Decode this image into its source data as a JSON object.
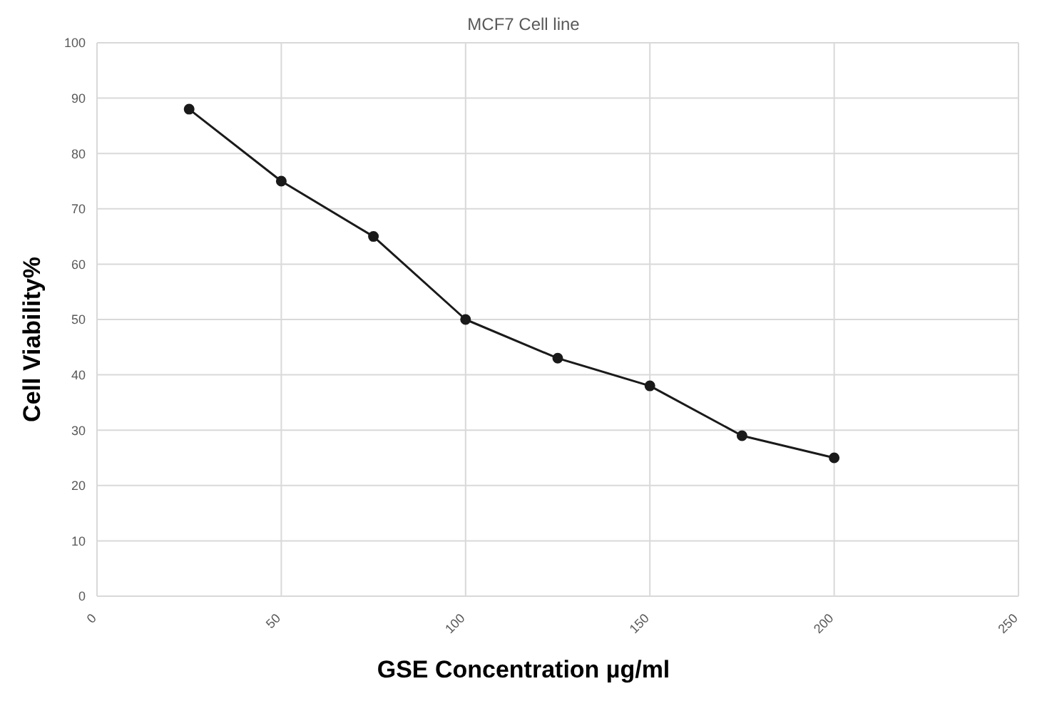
{
  "chart_data": {
    "type": "line",
    "title": "MCF7 Cell line",
    "xlabel": "GSE Concentration µg/ml",
    "ylabel": "Cell Viability%",
    "x": [
      25,
      50,
      75,
      100,
      125,
      150,
      175,
      200
    ],
    "series": [
      {
        "color": "#1a1a1a",
        "values": [
          88,
          75,
          65,
          50,
          43,
          38,
          29,
          25
        ]
      }
    ],
    "xlim": [
      0,
      250
    ],
    "xticks": [
      0,
      50,
      100,
      150,
      200,
      250
    ],
    "ylim": [
      0,
      100
    ],
    "yticks": [
      0,
      10,
      20,
      30,
      40,
      50,
      60,
      70,
      80,
      90,
      100
    ],
    "grid": true,
    "marker": "circle",
    "line_style": "solid",
    "legend": false
  }
}
